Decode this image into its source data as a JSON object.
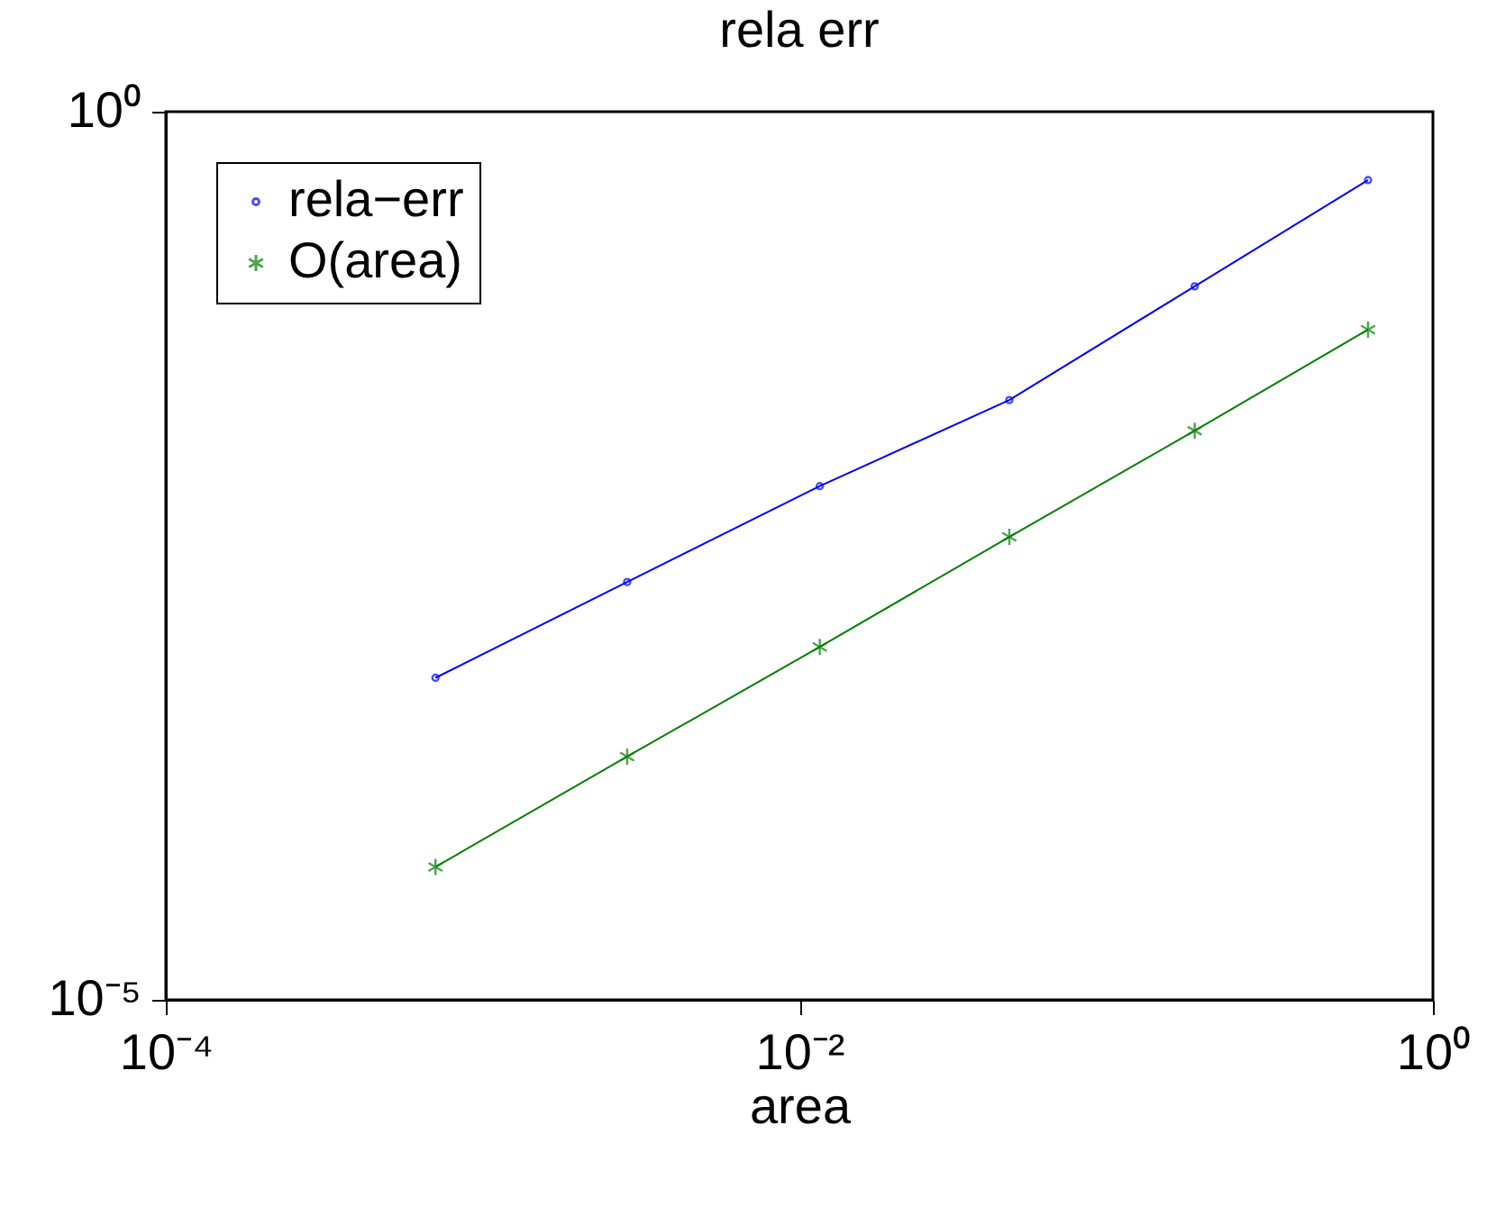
{
  "chart_data": {
    "type": "line",
    "title": "rela err",
    "xlabel": "area",
    "log": "xy",
    "legend": "top left",
    "xlim": [
      0.0001,
      1
    ],
    "ylim": [
      1e-05,
      1
    ],
    "xticks": [
      {
        "value": 0.0001,
        "label": "10⁻⁴"
      },
      {
        "value": 0.01,
        "label": "10⁻²"
      },
      {
        "value": 1,
        "label": "10⁰"
      }
    ],
    "yticks": [
      {
        "value": 1e-05,
        "label": "10⁻⁵"
      },
      {
        "value": 1,
        "label": "10⁰"
      }
    ],
    "x": [
      0.00071,
      0.00286,
      0.0116,
      0.046,
      0.177,
      0.624
    ],
    "series": [
      {
        "name": "rela−err",
        "color": "#0000ff",
        "marker": "circle",
        "values": [
          0.00065,
          0.00225,
          0.0078,
          0.0238,
          0.104,
          0.412
        ]
      },
      {
        "name": "O(area)",
        "color": "#008000",
        "marker": "cross",
        "values": [
          5.6e-05,
          0.000234,
          0.00097,
          0.00404,
          0.016,
          0.0593
        ]
      }
    ]
  }
}
